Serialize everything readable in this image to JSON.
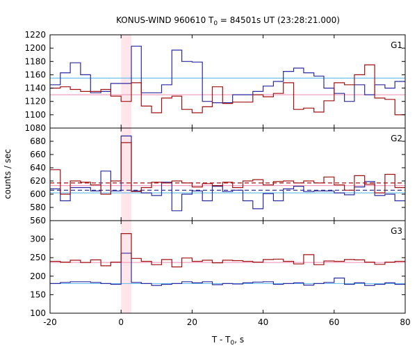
{
  "chart_data": {
    "type": "line",
    "title": "KONUS-WIND 960610 T",
    "title_sub": "0",
    "title_rest": " = 84501s UT (23:28:21.000)",
    "xlabel": "T - T",
    "xlabel_sub": "0",
    "xlabel_rest": ", s",
    "ylabel": "counts / sec",
    "xlim": [
      -20,
      80
    ],
    "x_ticks": [
      -20,
      0,
      20,
      40,
      60,
      80
    ],
    "highlight_band": {
      "x_range": [
        0,
        2.9
      ],
      "color": "#ffe6ea"
    },
    "grid": false,
    "colors": {
      "blue": "#2a2aa0",
      "red": "#a01010",
      "cyan": "#6cc0f0",
      "pink": "#f0a0c0",
      "dark_blue_dash": "#1a1a80",
      "dark_red_dash": "#a01010"
    },
    "panels": [
      {
        "name": "G1",
        "ylim": [
          1080,
          1220
        ],
        "y_ticks": [
          1080,
          1100,
          1120,
          1140,
          1160,
          1180,
          1200,
          1220
        ],
        "bin_edges": [
          -20,
          -17.1,
          -14.3,
          -11.4,
          -8.6,
          -5.7,
          -2.9,
          0,
          2.9,
          5.7,
          8.6,
          11.4,
          14.3,
          17.1,
          20,
          22.9,
          25.7,
          28.6,
          31.4,
          34.3,
          37.1,
          40,
          42.9,
          45.7,
          48.6,
          51.4,
          54.3,
          57.1,
          60,
          62.9,
          65.7,
          68.6,
          71.4,
          74.3,
          77.1,
          80
        ],
        "series": [
          {
            "color_key": "blue",
            "values": [
              1145,
              1163,
              1178,
              1160,
              1133,
              1135,
              1147,
              1147,
              1203,
              1133,
              1133,
              1145,
              1197,
              1180,
              1179,
              1120,
              1118,
              1118,
              1130,
              1130,
              1135,
              1143,
              1150,
              1165,
              1170,
              1163,
              1158,
              1140,
              1132,
              1120,
              1145,
              1130,
              1145,
              1140,
              1150
            ]
          },
          {
            "color_key": "red",
            "values": [
              1140,
              1142,
              1138,
              1135,
              1135,
              1138,
              1128,
              1120,
              1148,
              1113,
              1103,
              1125,
              1128,
              1108,
              1103,
              1112,
              1142,
              1117,
              1119,
              1119,
              1130,
              1127,
              1132,
              1148,
              1108,
              1110,
              1104,
              1121,
              1148,
              1145,
              1160,
              1175,
              1125,
              1123,
              1100
            ]
          }
        ],
        "reference_lines": [
          {
            "color_key": "cyan",
            "y": 1155,
            "style": "solid"
          },
          {
            "color_key": "pink",
            "y": 1130,
            "style": "solid"
          }
        ]
      },
      {
        "name": "G2",
        "ylim": [
          560,
          700
        ],
        "y_ticks": [
          560,
          580,
          600,
          620,
          640,
          660,
          680
        ],
        "bin_edges": [
          -20,
          -17.1,
          -14.3,
          -11.4,
          -8.6,
          -5.7,
          -2.9,
          0,
          2.9,
          5.7,
          8.6,
          11.4,
          14.3,
          17.1,
          20,
          22.9,
          25.7,
          28.6,
          31.4,
          34.3,
          37.1,
          40,
          42.9,
          45.7,
          48.6,
          51.4,
          54.3,
          57.1,
          60,
          62.9,
          65.7,
          68.6,
          71.4,
          74.3,
          77.1,
          80
        ],
        "series": [
          {
            "color_key": "blue",
            "values": [
              608,
              590,
              610,
              610,
              605,
              635,
              605,
              688,
              605,
              602,
              598,
              618,
              575,
              600,
              605,
              590,
              612,
              604,
              606,
              590,
              578,
              601,
              590,
              608,
              612,
              604,
              605,
              605,
              602,
              599,
              611,
              619,
              598,
              600,
              590
            ]
          },
          {
            "color_key": "red",
            "values": [
              637,
              600,
              620,
              618,
              614,
              600,
              620,
              678,
              604,
              610,
              618,
              617,
              620,
              617,
              611,
              616,
              613,
              618,
              610,
              620,
              622,
              614,
              619,
              620,
              617,
              620,
              617,
              626,
              614,
              606,
              628,
              615,
              602,
              630,
              610
            ]
          }
        ],
        "reference_lines": [
          {
            "color_key": "cyan",
            "y": 602,
            "style": "solid"
          },
          {
            "color_key": "pink",
            "y": 613,
            "style": "solid"
          },
          {
            "color_key": "dark_blue_dash",
            "y": 606,
            "style": "dashed"
          },
          {
            "color_key": "dark_red_dash",
            "y": 617,
            "style": "dashed"
          }
        ]
      },
      {
        "name": "G3",
        "ylim": [
          100,
          350
        ],
        "y_ticks": [
          100,
          150,
          200,
          250,
          300
        ],
        "bin_edges": [
          -20,
          -17.1,
          -14.3,
          -11.4,
          -8.6,
          -5.7,
          -2.9,
          0,
          2.9,
          5.7,
          8.6,
          11.4,
          14.3,
          17.1,
          20,
          22.9,
          25.7,
          28.6,
          31.4,
          34.3,
          37.1,
          40,
          42.9,
          45.7,
          48.6,
          51.4,
          54.3,
          57.1,
          60,
          62.9,
          65.7,
          68.6,
          71.4,
          74.3,
          77.1,
          80
        ],
        "series": [
          {
            "color_key": "blue",
            "values": [
              180,
              183,
              185,
              185,
              183,
              180,
              178,
              262,
              183,
              180,
              175,
              178,
              180,
              185,
              182,
              185,
              177,
              180,
              179,
              182,
              184,
              185,
              178,
              180,
              182,
              176,
              180,
              183,
              195,
              178,
              182,
              175,
              178,
              182,
              178
            ]
          },
          {
            "color_key": "red",
            "values": [
              240,
              238,
              243,
              237,
              244,
              228,
              238,
              315,
              248,
              240,
              231,
              245,
              225,
              249,
              240,
              243,
              236,
              243,
              242,
              240,
              238,
              245,
              246,
              240,
              233,
              258,
              231,
              241,
              240,
              245,
              244,
              238,
              232,
              238,
              240
            ]
          }
        ],
        "reference_lines": [
          {
            "color_key": "cyan",
            "y": 180,
            "style": "solid"
          },
          {
            "color_key": "pink",
            "y": 237,
            "style": "solid"
          }
        ]
      }
    ]
  }
}
